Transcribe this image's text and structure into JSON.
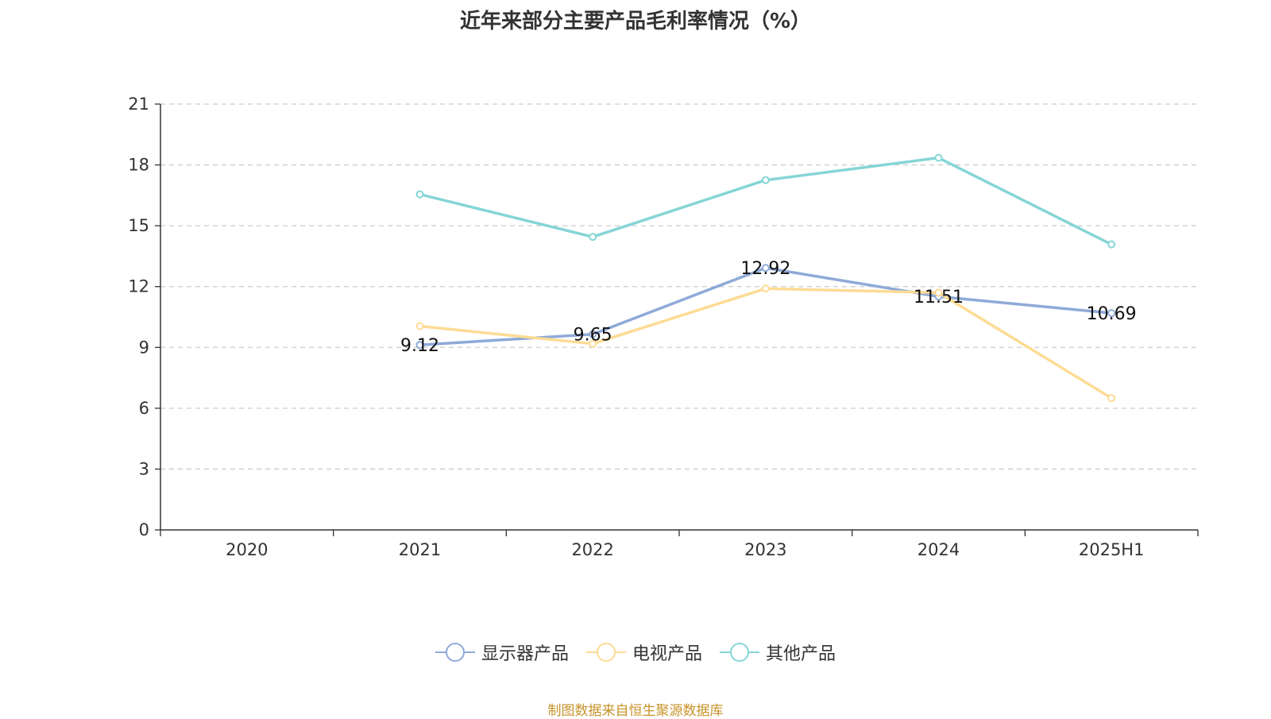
{
  "chart_data": {
    "type": "line",
    "title": "近年来部分主要产品毛利率情况（%）",
    "categories": [
      "2020",
      "2021",
      "2022",
      "2023",
      "2024",
      "2025H1"
    ],
    "ylim": [
      0,
      21
    ],
    "yticks": [
      0,
      3,
      6,
      9,
      12,
      15,
      18,
      21
    ],
    "grid": true,
    "legend_position": "bottom",
    "series": [
      {
        "name": "显示器产品",
        "color": "#8eaad8",
        "values": [
          null,
          9.12,
          9.65,
          12.92,
          11.51,
          10.69
        ],
        "labels": [
          null,
          "9.12",
          "9.65",
          "12.92",
          "11.51",
          "10.69"
        ]
      },
      {
        "name": "电视产品",
        "color": "#fddb94",
        "values": [
          null,
          10.05,
          9.18,
          11.9,
          11.7,
          6.5
        ],
        "labels": [
          null,
          null,
          null,
          null,
          null,
          null
        ]
      },
      {
        "name": "其他产品",
        "color": "#86d5d6",
        "values": [
          null,
          16.55,
          14.45,
          17.25,
          18.35,
          14.08
        ],
        "labels": [
          null,
          null,
          null,
          null,
          null,
          null
        ]
      }
    ]
  },
  "source": "制图数据来自恒生聚源数据库"
}
